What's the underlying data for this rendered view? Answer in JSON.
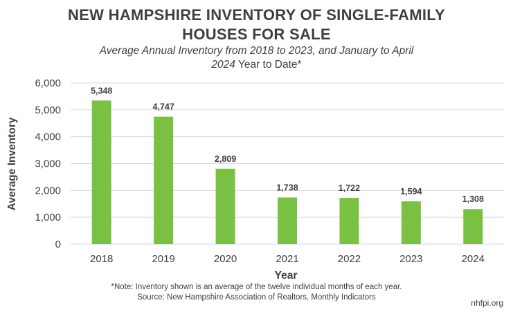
{
  "chart_data": {
    "type": "bar",
    "title_line1": "NEW HAMPSHIRE INVENTORY OF SINGLE-FAMILY",
    "title_line2": "HOUSES FOR SALE",
    "subtitle_line1": "Average Annual Inventory from 2018 to 2023, and January to April",
    "subtitle_line2_italic": "2024",
    "subtitle_line2_rest": " Year to Date*",
    "categories": [
      "2018",
      "2019",
      "2020",
      "2021",
      "2022",
      "2023",
      "2024"
    ],
    "values": [
      5348,
      4747,
      2809,
      1738,
      1722,
      1594,
      1308
    ],
    "data_labels": [
      "5,348",
      "4,747",
      "2,809",
      "1,738",
      "1,722",
      "1,594",
      "1,308"
    ],
    "xlabel": "Year",
    "ylabel": "Average Inventory",
    "ylim": [
      0,
      6000
    ],
    "yticks": [
      0,
      1000,
      2000,
      3000,
      4000,
      5000,
      6000
    ],
    "ytick_labels": [
      "0",
      "1,000",
      "2,000",
      "3,000",
      "4,000",
      "5,000",
      "6,000"
    ],
    "grid": true,
    "bar_color": "#7ac143",
    "grid_color": "#d9d9d9"
  },
  "footer": {
    "note": "*Note: Inventory shown is an average of the twelve individual months of each year.",
    "source": "Source: New Hampshire Association of Realtors, Monthly Indicators",
    "site": "nhfpi.org"
  }
}
